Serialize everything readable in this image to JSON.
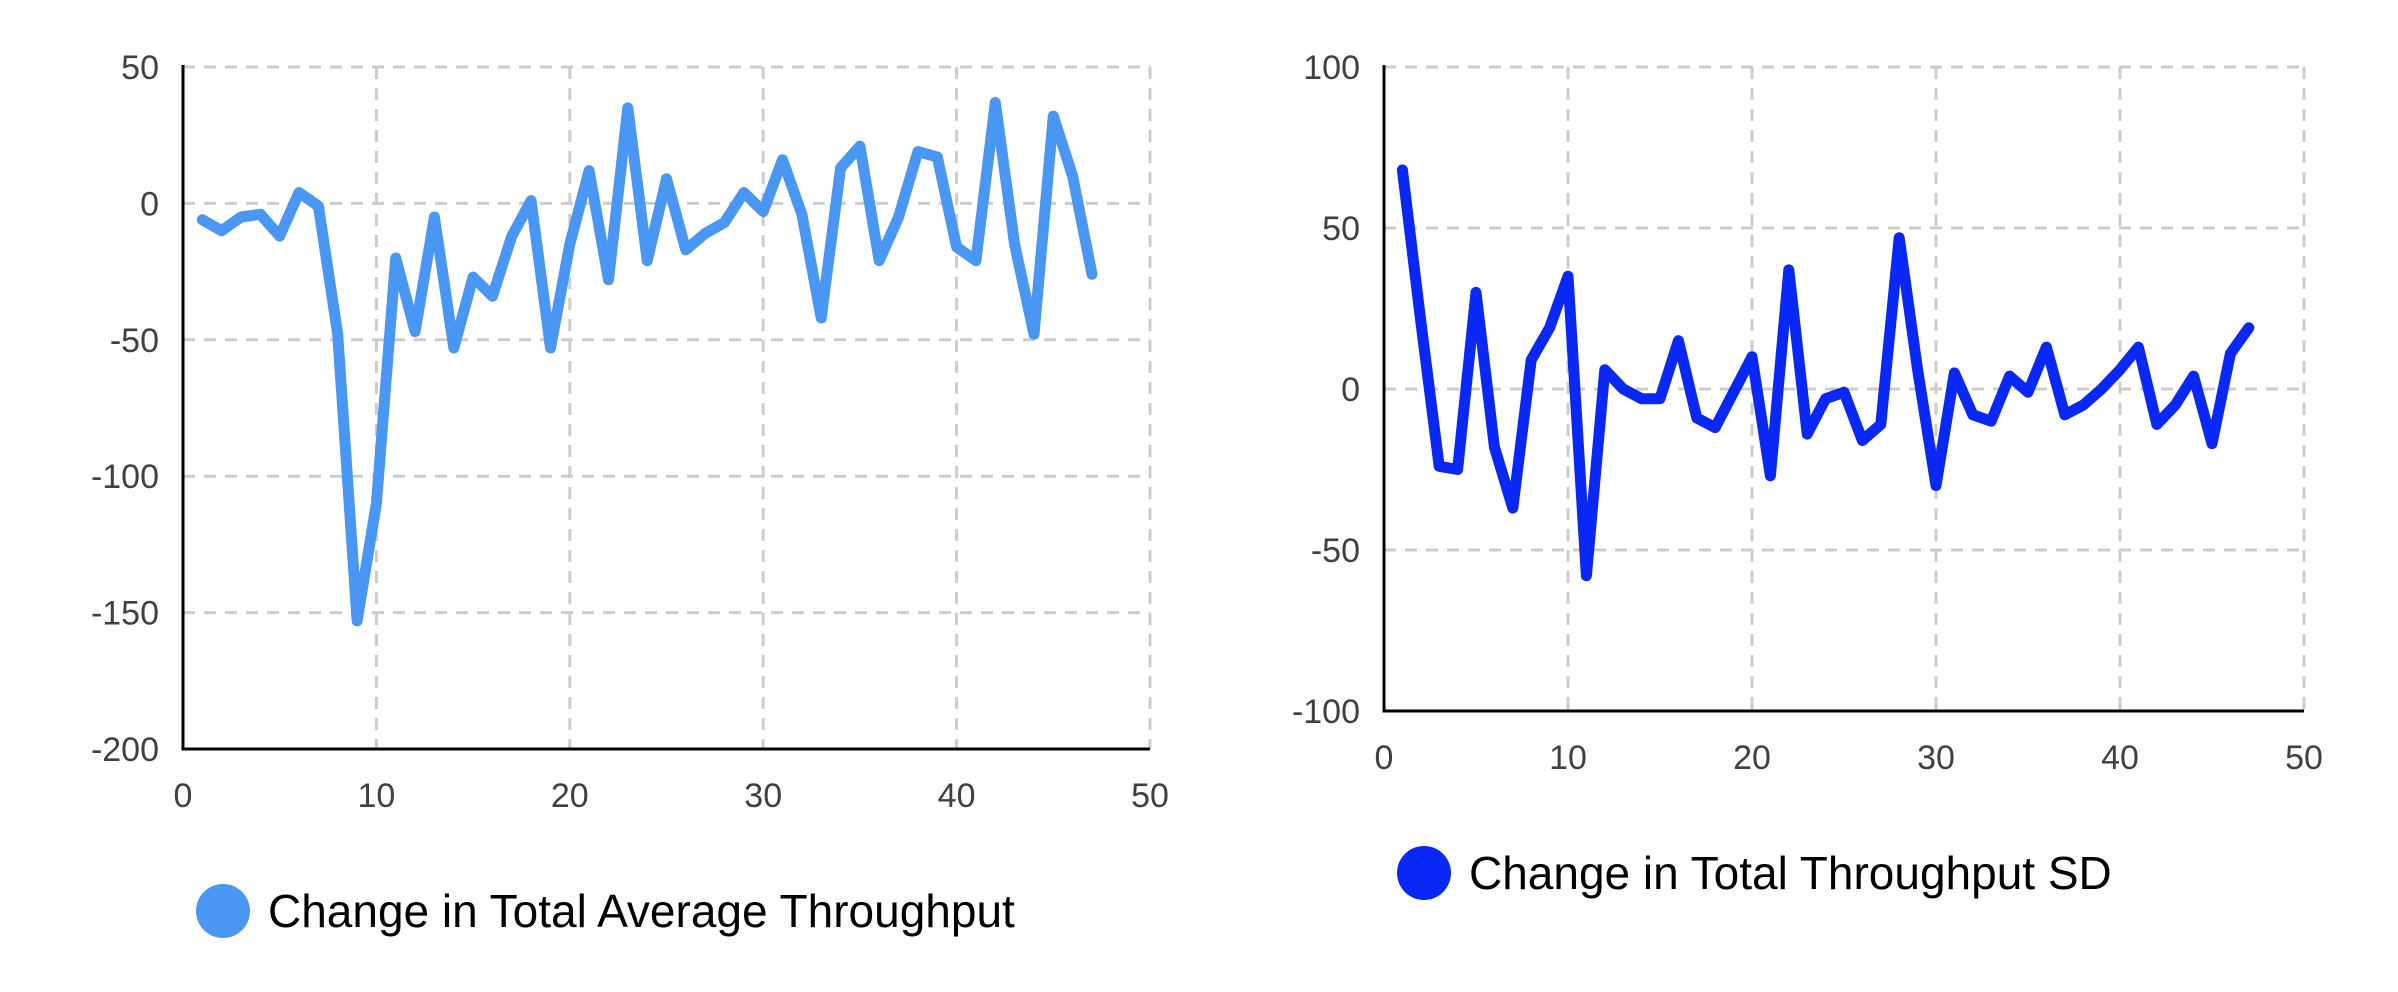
{
  "chart_data": [
    {
      "type": "line",
      "title": "",
      "xlabel": "",
      "ylabel": "",
      "xlim": [
        0,
        50
      ],
      "ylim": [
        -200,
        50
      ],
      "xticks": [
        0,
        10,
        20,
        30,
        40,
        50
      ],
      "yticks": [
        50,
        0,
        -50,
        -100,
        -150,
        -200
      ],
      "grid": true,
      "legend_position": "bottom",
      "series": [
        {
          "name": "Change in Total Average Throughput",
          "color": "#4a96f3",
          "x": [
            1,
            2,
            3,
            4,
            5,
            6,
            7,
            8,
            9,
            10,
            11,
            12,
            13,
            14,
            15,
            16,
            17,
            18,
            19,
            20,
            21,
            22,
            23,
            24,
            25,
            26,
            27,
            28,
            29,
            30,
            31,
            32,
            33,
            34,
            35,
            36,
            37,
            38,
            39,
            40,
            41,
            42,
            43,
            44,
            45,
            46,
            47
          ],
          "y": [
            -6,
            -10,
            -5,
            -4,
            -12,
            4,
            -1,
            -48,
            -153,
            -110,
            -20,
            -47,
            -5,
            -53,
            -27,
            -34,
            -12,
            1,
            -53,
            -15,
            12,
            -28,
            35,
            -21,
            9,
            -17,
            -11,
            -7,
            4,
            -3,
            16,
            -4,
            -42,
            13,
            21,
            -21,
            -5,
            19,
            17,
            -16,
            -21,
            37,
            -15,
            -48,
            32,
            10,
            -26
          ]
        }
      ]
    },
    {
      "type": "line",
      "title": "",
      "xlabel": "",
      "ylabel": "",
      "xlim": [
        0,
        50
      ],
      "ylim": [
        -100,
        100
      ],
      "xticks": [
        0,
        10,
        20,
        30,
        40,
        50
      ],
      "yticks": [
        100,
        50,
        0,
        -50,
        -100
      ],
      "grid": true,
      "legend_position": "bottom",
      "series": [
        {
          "name": "Change in Total Throughput SD",
          "color": "#0a28f5",
          "x": [
            1,
            2,
            3,
            4,
            5,
            6,
            7,
            8,
            9,
            10,
            11,
            12,
            13,
            14,
            15,
            16,
            17,
            18,
            19,
            20,
            21,
            22,
            23,
            24,
            25,
            26,
            27,
            28,
            29,
            30,
            31,
            32,
            33,
            34,
            35,
            36,
            37,
            38,
            39,
            40,
            41,
            42,
            43,
            44,
            45,
            46,
            47
          ],
          "y": [
            68,
            21,
            -24,
            -25,
            30,
            -18,
            -37,
            9,
            19,
            35,
            -58,
            6,
            0,
            -3,
            -3,
            15,
            -9,
            -12,
            -1,
            10,
            -27,
            37,
            -14,
            -3,
            -1,
            -16,
            -11,
            47,
            6,
            -30,
            5,
            -8,
            -10,
            4,
            -1,
            13,
            -8,
            -5,
            0,
            6,
            13,
            -11,
            -5,
            4,
            -17,
            11,
            19
          ]
        }
      ]
    }
  ]
}
